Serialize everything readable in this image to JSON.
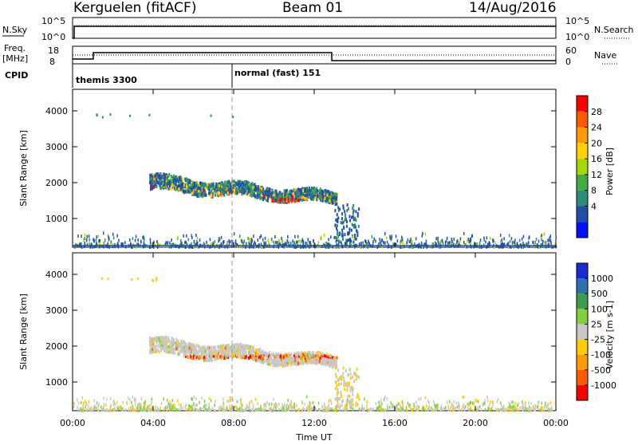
{
  "header": {
    "station": "Kerguelen (fitACF)",
    "beam": "Beam 01",
    "date": "14/Aug/2016"
  },
  "top_panels": {
    "nsky_label": "N.Sky",
    "nsky_ticks": [
      "10^5",
      "10^0"
    ],
    "nsearch_label": "N.Search",
    "nsearch_ticks": [
      "10^5",
      "10^0"
    ],
    "freq_label_1": "Freq.",
    "freq_label_2": "[MHz]",
    "freq_ticks": [
      "18",
      "8"
    ],
    "nave_label": "Nave",
    "nave_ticks": [
      "60",
      "0"
    ],
    "cpid_label": "CPID",
    "cpid_segments": [
      {
        "label": "themis 3300",
        "start_h": 0
      },
      {
        "label": "normal (fast) 151",
        "start_h": 8
      }
    ]
  },
  "chart_data": [
    {
      "type": "heatmap",
      "name": "power",
      "ylabel": "Slant Range [km]",
      "y_ticks": [
        "4000",
        "3000",
        "2000",
        "1000"
      ],
      "y_tick_values": [
        4000,
        3000,
        2000,
        1000
      ],
      "ylim": [
        200,
        4600
      ],
      "x_ticks": [
        "00:00",
        "04:00",
        "08:00",
        "12:00",
        "16:00",
        "20:00",
        "00:00"
      ],
      "xlim": [
        0,
        24
      ],
      "colorbar_label": "Power [dB]",
      "colorbar_ticks": [
        "28",
        "24",
        "20",
        "16",
        "12",
        "8",
        "4"
      ],
      "colorbar_colors": [
        "#ff0000",
        "#ff5a00",
        "#ff9a00",
        "#ffd200",
        "#a6d800",
        "#3fae3f",
        "#2c8c7c",
        "#1f4fa8",
        "#0010ff"
      ],
      "scatter_regions": [
        {
          "t_start": 3.8,
          "t_end": 13.1,
          "r_min": 1200,
          "r_max": 2300
        },
        {
          "t_start": 13.0,
          "t_end": 14.2,
          "r_min": 300,
          "r_max": 1400
        },
        {
          "t_start": 0,
          "t_end": 24,
          "r_min": 200,
          "r_max": 600
        }
      ]
    },
    {
      "type": "heatmap",
      "name": "velocity",
      "ylabel": "Slant Range [km]",
      "y_ticks": [
        "4000",
        "3000",
        "2000",
        "1000"
      ],
      "y_tick_values": [
        4000,
        3000,
        2000,
        1000
      ],
      "ylim": [
        200,
        4600
      ],
      "x_ticks": [
        "00:00",
        "04:00",
        "08:00",
        "12:00",
        "16:00",
        "20:00",
        "00:00"
      ],
      "xlim": [
        0,
        24
      ],
      "xlabel": "Time UT",
      "colorbar_label": "Velocity [m s-1]",
      "colorbar_ticks": [
        "1000",
        "500",
        "100",
        "25",
        "-25",
        "-100",
        "-500",
        "-1000"
      ],
      "colorbar_colors": [
        "#1a2bd6",
        "#2d6fb0",
        "#3a9d50",
        "#80d040",
        "#c8c8c8",
        "#ffcc00",
        "#ff9a00",
        "#ff5a00",
        "#ff0000"
      ],
      "scatter_regions": [
        {
          "t_start": 3.8,
          "t_end": 13.1,
          "r_min": 1200,
          "r_max": 2300
        },
        {
          "t_start": 13.0,
          "t_end": 14.2,
          "r_min": 300,
          "r_max": 1400
        },
        {
          "t_start": 0,
          "t_end": 24,
          "r_min": 200,
          "r_max": 600
        }
      ]
    }
  ]
}
